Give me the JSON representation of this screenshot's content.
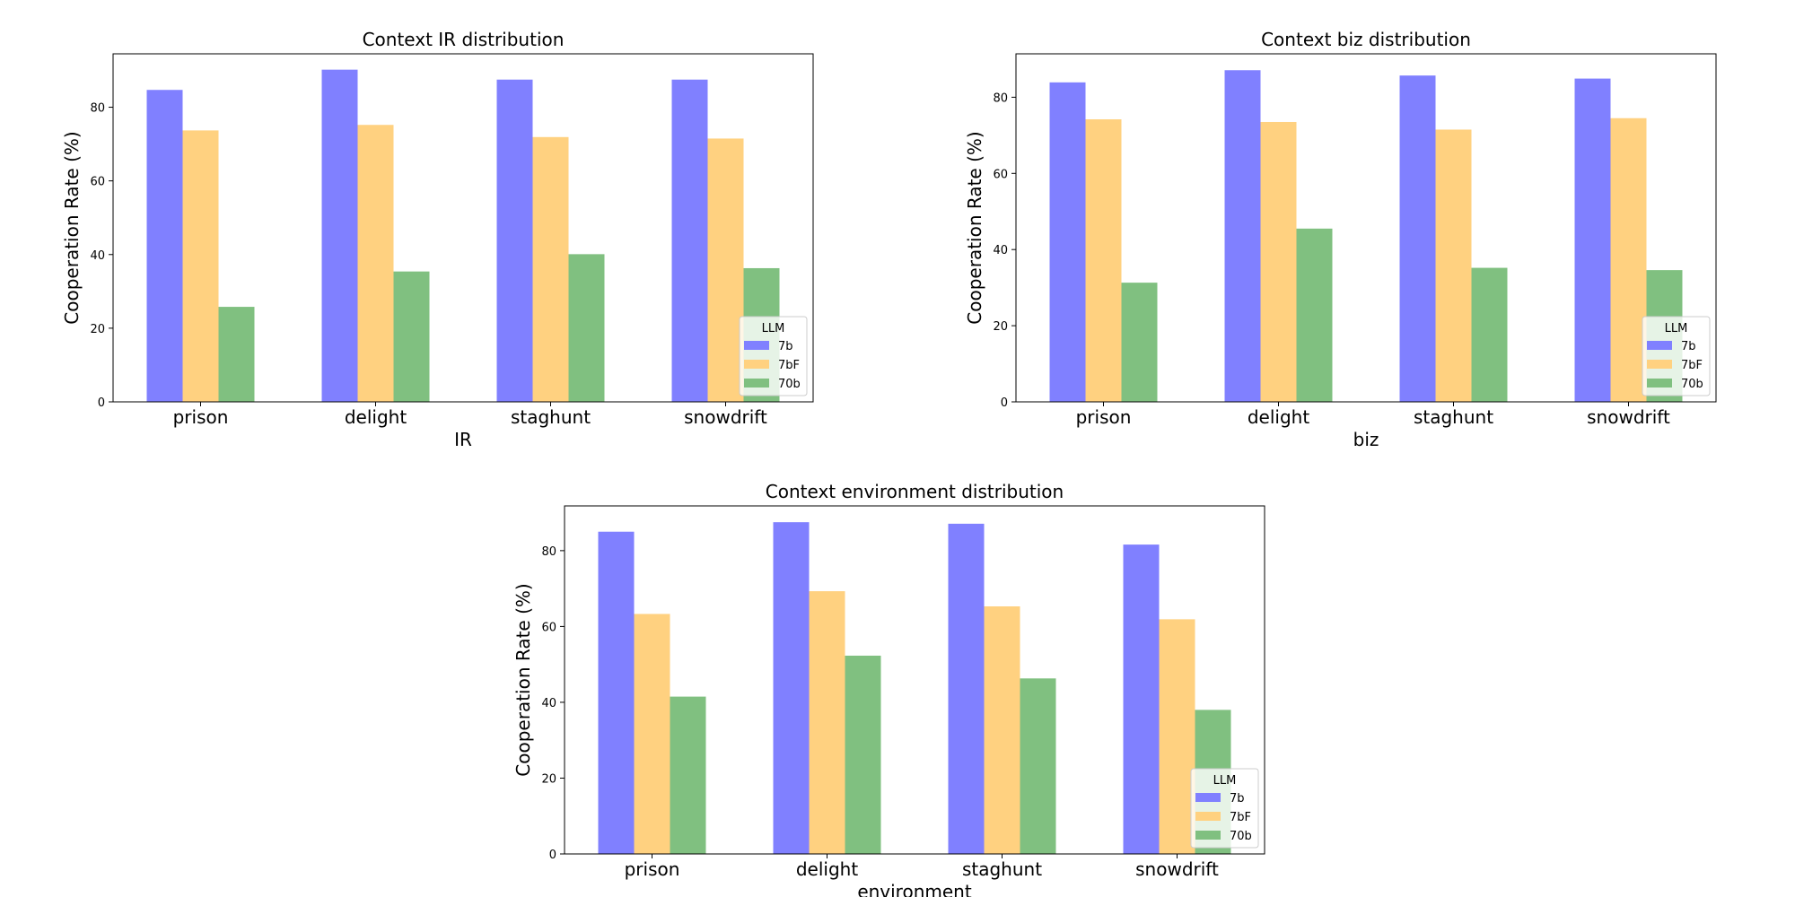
{
  "figure": {
    "background": "#ffffff"
  },
  "series_colors": {
    "7b": "#8080ff",
    "7bF": "#ffd180",
    "70b": "#80c080"
  },
  "chart_data": [
    {
      "type": "bar",
      "title": "Context IR distribution",
      "xlabel": "IR",
      "ylabel": "Cooperation Rate (%)",
      "categories": [
        "prison",
        "delight",
        "staghunt",
        "snowdrift"
      ],
      "ylim": [
        0,
        94.5
      ],
      "yticks": [
        0,
        20,
        40,
        60,
        80
      ],
      "legend": {
        "title": "LLM",
        "position": "lower-right"
      },
      "series": [
        {
          "name": "7b",
          "values": [
            84.7,
            90.2,
            87.5,
            87.5
          ]
        },
        {
          "name": "7bF",
          "values": [
            73.7,
            75.2,
            71.9,
            71.5
          ]
        },
        {
          "name": "70b",
          "values": [
            25.8,
            35.4,
            40.1,
            36.3
          ]
        }
      ]
    },
    {
      "type": "bar",
      "title": "Context biz distribution",
      "xlabel": "biz",
      "ylabel": "Cooperation Rate (%)",
      "categories": [
        "prison",
        "delight",
        "staghunt",
        "snowdrift"
      ],
      "ylim": [
        0,
        91.4
      ],
      "yticks": [
        0,
        20,
        40,
        60,
        80
      ],
      "legend": {
        "title": "LLM",
        "position": "lower-right"
      },
      "series": [
        {
          "name": "7b",
          "values": [
            83.9,
            87.1,
            85.7,
            84.9
          ]
        },
        {
          "name": "7bF",
          "values": [
            74.2,
            73.5,
            71.5,
            74.5
          ]
        },
        {
          "name": "70b",
          "values": [
            31.3,
            45.5,
            35.2,
            34.6
          ]
        }
      ]
    },
    {
      "type": "bar",
      "title": "Context environment distribution",
      "xlabel": "environment",
      "ylabel": "Cooperation Rate (%)",
      "categories": [
        "prison",
        "delight",
        "staghunt",
        "snowdrift"
      ],
      "ylim": [
        0,
        91.8
      ],
      "yticks": [
        0,
        20,
        40,
        60,
        80
      ],
      "legend": {
        "title": "LLM",
        "position": "lower-right"
      },
      "series": [
        {
          "name": "7b",
          "values": [
            85.0,
            87.5,
            87.1,
            81.6
          ]
        },
        {
          "name": "7bF",
          "values": [
            63.3,
            69.3,
            65.3,
            61.9
          ]
        },
        {
          "name": "70b",
          "values": [
            41.5,
            52.3,
            46.3,
            38.0
          ]
        }
      ]
    }
  ]
}
